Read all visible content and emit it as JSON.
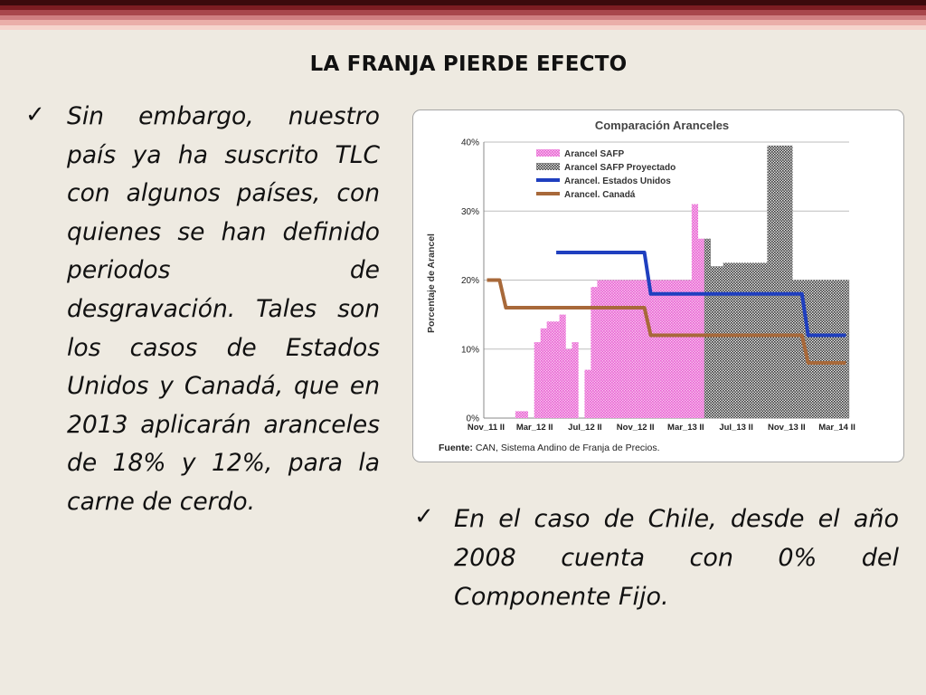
{
  "colors": {
    "stripes": [
      "#3a0a0c",
      "#7b1d22",
      "#a8474c",
      "#cf7f81",
      "#eaaea9",
      "#f6d4cd"
    ],
    "safp": "#e85fd2",
    "projected": "#3a3a3a",
    "usa": "#1f3fbf",
    "canada": "#a8693a"
  },
  "slide": {
    "title": "LA FRANJA PIERDE EFECTO",
    "bullet_left": "Sin embargo, nuestro país ya ha suscrito TLC con algunos países, con quienes se han definido periodos de desgravación. Tales son los casos de Estados Unidos y Canadá, que en 2013 aplicarán aranceles de 18% y 12%, para la carne de cerdo.",
    "bullet_right": "En el caso de Chile, desde el año 2008 cuenta con 0% del Componente Fijo.",
    "check_icon": "✓"
  },
  "source": {
    "label": "Fuente:",
    "text": " CAN, Sistema Andino de Franja de Precios."
  },
  "chart_data": {
    "type": "bar",
    "title": "Comparación Aranceles",
    "ylabel": "Porcentaje de Arancel",
    "xlabel": "",
    "ylim": [
      0,
      40
    ],
    "yticks": [
      "0%",
      "10%",
      "20%",
      "30%",
      "40%"
    ],
    "xticks": [
      "Nov_11 II",
      "Mar_12 II",
      "Jul_12 II",
      "Nov_12 II",
      "Mar_13 II",
      "Jul_13 II",
      "Nov_13 II",
      "Mar_14 II"
    ],
    "legend": [
      "Arancel SAFP",
      "Arancel SAFP Proyectado",
      "Arancel. Estados Unidos",
      "Arancel. Canadá"
    ],
    "legend_position": "top-left",
    "periods": 58,
    "series": [
      {
        "name": "Arancel SAFP",
        "kind": "bar",
        "values": [
          0,
          0,
          0,
          0,
          0,
          1,
          1,
          0,
          11,
          13,
          14,
          14,
          15,
          10,
          11,
          0,
          7,
          19,
          20,
          20,
          20,
          20,
          20,
          20,
          20,
          20,
          20,
          20,
          20,
          20,
          20,
          20,
          20,
          31,
          26,
          null,
          null,
          null,
          null,
          null,
          null,
          null,
          null,
          null,
          null,
          null,
          null,
          null,
          null,
          null,
          null,
          null,
          null,
          null,
          null,
          null,
          null,
          null
        ]
      },
      {
        "name": "Arancel SAFP Proyectado",
        "kind": "bar",
        "values": [
          null,
          null,
          null,
          null,
          null,
          null,
          null,
          null,
          null,
          null,
          null,
          null,
          null,
          null,
          null,
          null,
          null,
          null,
          null,
          null,
          null,
          null,
          null,
          null,
          null,
          null,
          null,
          null,
          null,
          null,
          null,
          null,
          null,
          null,
          null,
          26,
          22,
          22,
          22.5,
          22.5,
          22.5,
          22.5,
          22.5,
          22.5,
          22.5,
          39.5,
          39.5,
          39.5,
          39.5,
          20,
          20,
          20,
          20,
          20,
          20,
          20,
          20,
          20
        ]
      },
      {
        "name": "Arancel. Estados Unidos",
        "kind": "line",
        "values": [
          null,
          null,
          null,
          null,
          null,
          null,
          null,
          null,
          null,
          null,
          null,
          24,
          24,
          24,
          24,
          24,
          24,
          24,
          24,
          24,
          24,
          24,
          24,
          24,
          24,
          24,
          18,
          18,
          18,
          18,
          18,
          18,
          18,
          18,
          18,
          18,
          18,
          18,
          18,
          18,
          18,
          18,
          18,
          18,
          18,
          18,
          18,
          18,
          18,
          18,
          18,
          12,
          12,
          12,
          12,
          12,
          12,
          12
        ]
      },
      {
        "name": "Arancel. Canadá",
        "kind": "line",
        "values": [
          20,
          20,
          20,
          16,
          16,
          16,
          16,
          16,
          16,
          16,
          16,
          16,
          16,
          16,
          16,
          16,
          16,
          16,
          16,
          16,
          16,
          16,
          16,
          16,
          16,
          16,
          12,
          12,
          12,
          12,
          12,
          12,
          12,
          12,
          12,
          12,
          12,
          12,
          12,
          12,
          12,
          12,
          12,
          12,
          12,
          12,
          12,
          12,
          12,
          12,
          12,
          8,
          8,
          8,
          8,
          8,
          8,
          8
        ]
      }
    ]
  }
}
